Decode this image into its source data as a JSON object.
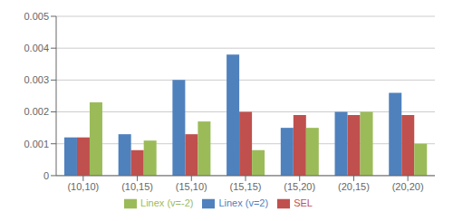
{
  "chart_data": {
    "type": "bar",
    "categories": [
      "(10,10)",
      "(10,15)",
      "(15,10)",
      "(15,15)",
      "(15,20)",
      "(20,15)",
      "(20,20)"
    ],
    "series": [
      {
        "name": "Linex (v=2)",
        "color": "#4F81BD",
        "values": [
          0.0012,
          0.0013,
          0.003,
          0.0038,
          0.0015,
          0.002,
          0.0026
        ]
      },
      {
        "name": "SEL",
        "color": "#C0504D",
        "values": [
          0.0012,
          0.0008,
          0.0013,
          0.002,
          0.0019,
          0.0019,
          0.0019
        ]
      },
      {
        "name": "Linex (v=-2)",
        "color": "#9BBB59",
        "values": [
          0.0023,
          0.0011,
          0.0017,
          0.0008,
          0.0015,
          0.002,
          0.001
        ]
      }
    ],
    "ylim": [
      0,
      0.005
    ],
    "yticks": [
      0,
      0.001,
      0.002,
      0.003,
      0.004,
      0.005
    ],
    "grid": true,
    "legend": "bottom"
  }
}
